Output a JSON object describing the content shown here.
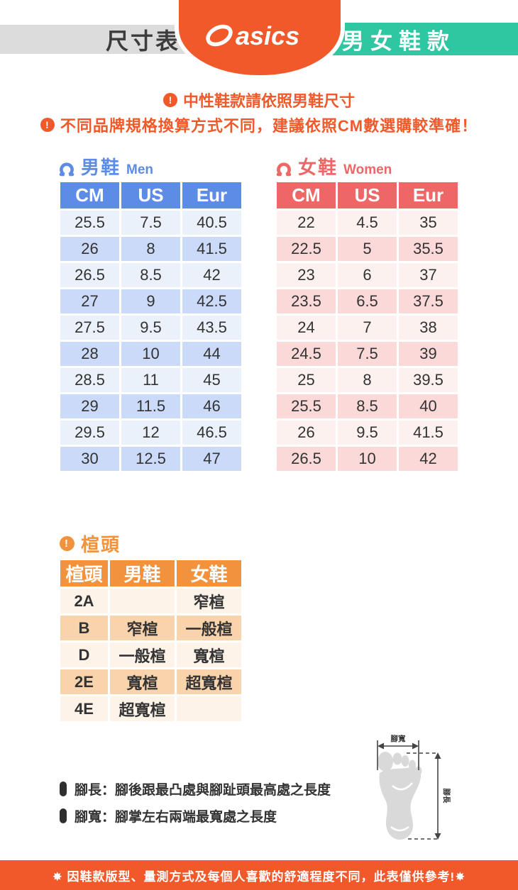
{
  "header": {
    "left_pill": "尺寸表",
    "brand": "asics",
    "right_pill": "男女鞋款"
  },
  "notices": [
    {
      "text": "中性鞋款請依照男鞋尺寸"
    },
    {
      "text": "不同品牌規格換算方式不同，建議依照CM數選購較準確！"
    }
  ],
  "men": {
    "title": "男鞋",
    "subtitle": "Men",
    "headers": [
      "CM",
      "US",
      "Eur"
    ],
    "rows": [
      [
        "25.5",
        "7.5",
        "40.5"
      ],
      [
        "26",
        "8",
        "41.5"
      ],
      [
        "26.5",
        "8.5",
        "42"
      ],
      [
        "27",
        "9",
        "42.5"
      ],
      [
        "27.5",
        "9.5",
        "43.5"
      ],
      [
        "28",
        "10",
        "44"
      ],
      [
        "28.5",
        "11",
        "45"
      ],
      [
        "29",
        "11.5",
        "46"
      ],
      [
        "29.5",
        "12",
        "46.5"
      ],
      [
        "30",
        "12.5",
        "47"
      ]
    ]
  },
  "women": {
    "title": "女鞋",
    "subtitle": "Women",
    "headers": [
      "CM",
      "US",
      "Eur"
    ],
    "rows": [
      [
        "22",
        "4.5",
        "35"
      ],
      [
        "22.5",
        "5",
        "35.5"
      ],
      [
        "23",
        "6",
        "37"
      ],
      [
        "23.5",
        "6.5",
        "37.5"
      ],
      [
        "24",
        "7",
        "38"
      ],
      [
        "24.5",
        "7.5",
        "39"
      ],
      [
        "25",
        "8",
        "39.5"
      ],
      [
        "25.5",
        "8.5",
        "40"
      ],
      [
        "26",
        "9.5",
        "41.5"
      ],
      [
        "26.5",
        "10",
        "42"
      ]
    ]
  },
  "last": {
    "title": "楦頭",
    "headers": [
      "楦頭",
      "男鞋",
      "女鞋"
    ],
    "rows": [
      [
        "2A",
        "",
        "窄楦"
      ],
      [
        "B",
        "窄楦",
        "一般楦"
      ],
      [
        "D",
        "一般楦",
        "寬楦"
      ],
      [
        "2E",
        "寬楦",
        "超寬楦"
      ],
      [
        "4E",
        "超寬楦",
        ""
      ]
    ]
  },
  "notes": [
    {
      "text": "腳長：腳後跟最凸處與腳趾頭最高處之長度"
    },
    {
      "text": "腳寬：腳掌左右兩端最寬處之長度"
    }
  ],
  "diagram": {
    "width_label": "腳寬",
    "length_label": "腳長"
  },
  "footer": {
    "text": "✸ 因鞋款版型、量測方式及每個人喜歡的舒適程度不同，此表僅供參考!✸"
  },
  "colors": {
    "orange": "#F1592B",
    "teal": "#2FC6A2",
    "blue": "#5C8CE6",
    "pink_red": "#ED6767",
    "table_orange": "#F2923C",
    "gray_pill": "#DCDCDC"
  }
}
